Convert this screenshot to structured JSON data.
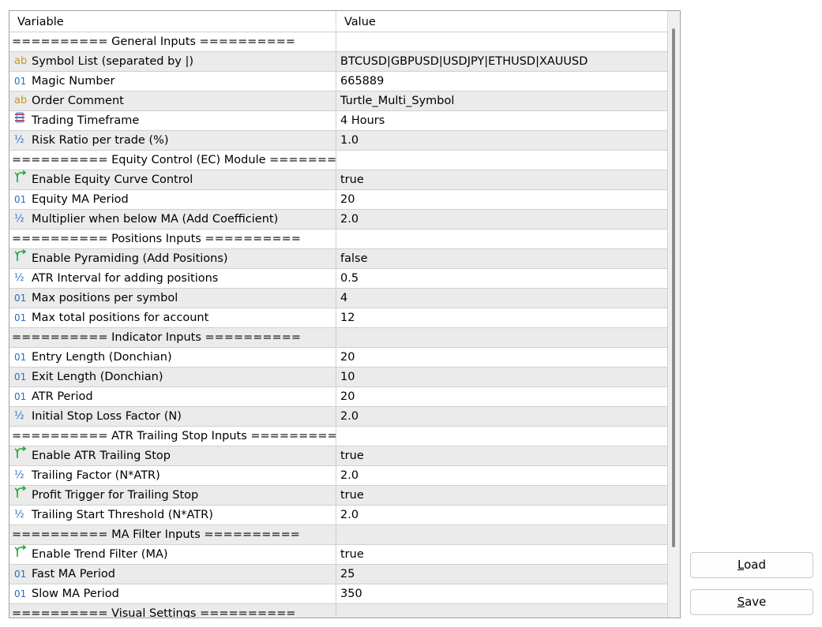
{
  "header": {
    "variable": "Variable",
    "value": "Value"
  },
  "rows": [
    {
      "type": "sep",
      "name": "========== General Inputs ==========",
      "value": ""
    },
    {
      "type": "str",
      "icon": "ab",
      "name": "Symbol List (separated by |)",
      "value": "BTCUSD|GBPUSD|USDJPY|ETHUSD|XAUUSD"
    },
    {
      "type": "int",
      "icon": "01",
      "name": "Magic Number",
      "value": "665889"
    },
    {
      "type": "str",
      "icon": "ab",
      "name": "Order Comment",
      "value": "Turtle_Multi_Symbol"
    },
    {
      "type": "enum",
      "icon": "enum",
      "name": "Trading Timeframe",
      "value": "4 Hours"
    },
    {
      "type": "dbl",
      "icon": "½",
      "name": "Risk Ratio per trade (%)",
      "value": "1.0"
    },
    {
      "type": "sep",
      "name": "========== Equity Control (EC) Module =======...",
      "value": ""
    },
    {
      "type": "bool",
      "icon": "bool",
      "name": "Enable Equity Curve Control",
      "value": "true"
    },
    {
      "type": "int",
      "icon": "01",
      "name": "Equity MA Period",
      "value": "20"
    },
    {
      "type": "dbl",
      "icon": "½",
      "name": "Multiplier when below MA (Add Coefficient)",
      "value": "2.0"
    },
    {
      "type": "sep",
      "name": "========== Positions Inputs ==========",
      "value": ""
    },
    {
      "type": "bool",
      "icon": "bool",
      "name": "Enable Pyramiding (Add Positions)",
      "value": "false"
    },
    {
      "type": "dbl",
      "icon": "½",
      "name": "ATR Interval for adding positions",
      "value": "0.5"
    },
    {
      "type": "int",
      "icon": "01",
      "name": "Max positions per symbol",
      "value": "4"
    },
    {
      "type": "int",
      "icon": "01",
      "name": "Max total positions for account",
      "value": "12"
    },
    {
      "type": "sep",
      "name": "========== Indicator Inputs ==========",
      "value": ""
    },
    {
      "type": "int",
      "icon": "01",
      "name": "Entry Length (Donchian)",
      "value": "20"
    },
    {
      "type": "int",
      "icon": "01",
      "name": "Exit Length (Donchian)",
      "value": "10"
    },
    {
      "type": "int",
      "icon": "01",
      "name": "ATR Period",
      "value": "20"
    },
    {
      "type": "dbl",
      "icon": "½",
      "name": "Initial Stop Loss Factor (N)",
      "value": "2.0"
    },
    {
      "type": "sep",
      "name": "========== ATR Trailing Stop Inputs ==========",
      "value": ""
    },
    {
      "type": "bool",
      "icon": "bool",
      "name": "Enable ATR Trailing Stop",
      "value": "true"
    },
    {
      "type": "dbl",
      "icon": "½",
      "name": "Trailing Factor (N*ATR)",
      "value": "2.0"
    },
    {
      "type": "bool",
      "icon": "bool",
      "name": "Profit Trigger for Trailing Stop",
      "value": "true"
    },
    {
      "type": "dbl",
      "icon": "½",
      "name": "Trailing Start Threshold (N*ATR)",
      "value": "2.0"
    },
    {
      "type": "sep",
      "name": "========== MA Filter Inputs ==========",
      "value": ""
    },
    {
      "type": "bool",
      "icon": "bool",
      "name": "Enable Trend Filter (MA)",
      "value": "true"
    },
    {
      "type": "int",
      "icon": "01",
      "name": "Fast MA Period",
      "value": "25"
    },
    {
      "type": "int",
      "icon": "01",
      "name": "Slow MA Period",
      "value": "350"
    },
    {
      "type": "sep",
      "name": "========== Visual Settings ==========",
      "value": ""
    }
  ],
  "buttons": {
    "load": {
      "accel": "L",
      "rest": "oad"
    },
    "save": {
      "accel": "S",
      "rest": "ave"
    }
  }
}
